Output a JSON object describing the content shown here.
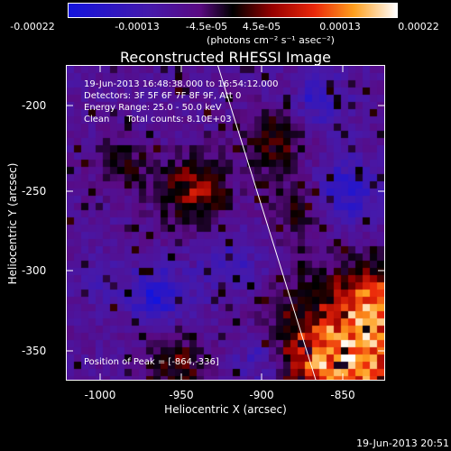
{
  "colorbar": {
    "ticks": [
      "-0.00022",
      "-0.00013",
      "-4.5e-05",
      "4.5e-05",
      "0.00013",
      "0.00022"
    ],
    "unit_label": "(photons cm⁻² s⁻¹ asec⁻²)"
  },
  "plot": {
    "title": "Reconstructed RHESSI Image",
    "info": {
      "time_range": "19-Jun-2013 16:48:38.000 to 16:54:12.000",
      "detectors": "Detectors: 3F 5F 6F 7F 8F 9F, Att 0",
      "energy": "Energy Range: 25.0 - 50.0 keV",
      "clean": "Clean      Total counts: 8.10E+03",
      "peak": "Position of Peak = [-864,-336]"
    },
    "x_axis": {
      "label": "Heliocentric X (arcsec)",
      "range": [
        -1020,
        -823
      ],
      "ticks": [
        "-1000",
        "-950",
        "-900",
        "-850"
      ]
    },
    "y_axis": {
      "label": "Heliocentric Y (arcsec)",
      "range": [
        -370,
        -173
      ],
      "ticks": [
        "-200",
        "-250",
        "-300",
        "-350"
      ]
    }
  },
  "timestamp": "19-Jun-2013 20:51"
}
